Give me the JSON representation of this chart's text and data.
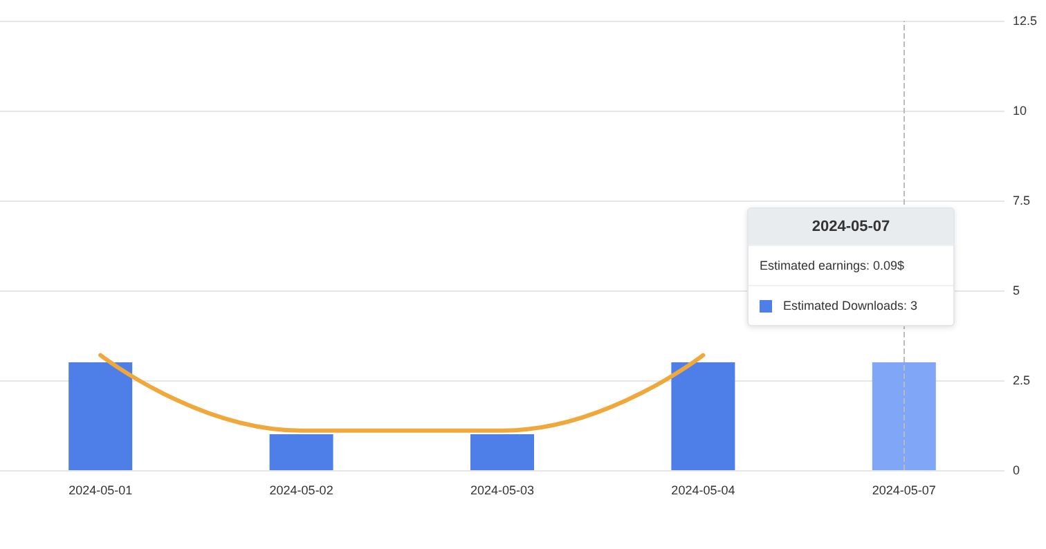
{
  "chart_data": {
    "type": "bar",
    "categories": [
      "2024-05-01",
      "2024-05-02",
      "2024-05-03",
      "2024-05-04",
      "2024-05-07"
    ],
    "series": [
      {
        "colors": [
          "#4e7fe8",
          "#4e7fe8",
          "#4e7fe8",
          "#4e7fe8",
          "#7fa6f7"
        ],
        "values": [
          3,
          1,
          1,
          3,
          3
        ]
      },
      {
        "type": "line",
        "color": "#f0a83a",
        "values": [
          3.2,
          1.1,
          1.1,
          3.2,
          null
        ],
        "marker": "none"
      }
    ],
    "ylim": [
      0,
      12.5
    ],
    "yticks": [
      0,
      2.5,
      5,
      7.5,
      10,
      12.5
    ],
    "grid": "y",
    "ref_lines": [
      {
        "axis": "x",
        "value": "2024-05-07",
        "color": "#bbbbbb",
        "line_style": "dashed"
      }
    ],
    "annotations": [
      "2024-05-07",
      "Estimated earnings: 0.09$",
      "Estimated Downloads: 3"
    ]
  }
}
